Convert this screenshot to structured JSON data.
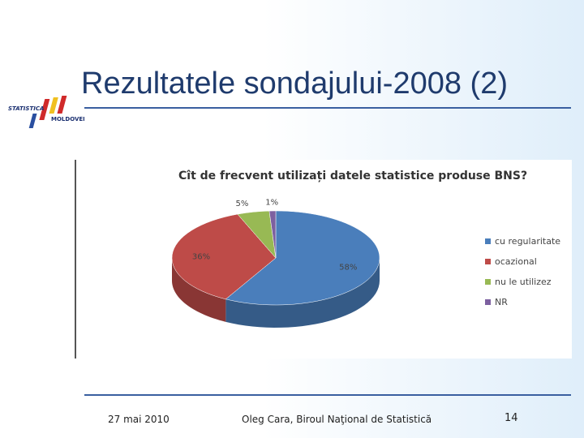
{
  "slide": {
    "title": "Rezultatele sondajului-2008 (2)",
    "logo_top": "STATISTICA",
    "logo_bottom": "MOLDOVEI",
    "date": "27 mai 2010",
    "author": "Oleg Cara, Biroul Naţional de Statistică",
    "page": "14"
  },
  "chart_data": {
    "type": "pie",
    "title": "Cît de frecvent utilizați datele statistice produse BNS?",
    "categories": [
      "cu regularitate",
      "ocazional",
      "nu le utilizez",
      "NR"
    ],
    "values": [
      58,
      36,
      5,
      1
    ],
    "value_labels": [
      "58%",
      "36%",
      "5%",
      "1%"
    ],
    "colors": [
      "#4a7ebb",
      "#be4b48",
      "#98b954",
      "#7d60a0"
    ],
    "legend": "right"
  }
}
